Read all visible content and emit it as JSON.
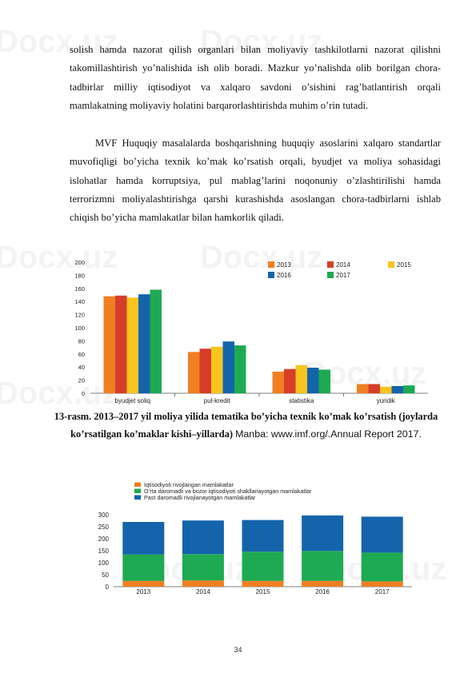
{
  "paragraphs": [
    "solish hamda nazorat qilish organlari bilan moliyaviy  tashkilotlarni nazorat qilishni takomillashtirish yo’nalishida ish olib boradi. Mazkur yo’nalishda olib borilgan chora-tadbirlar milliy iqtisodiyot va xalqaro savdoni o’sishini rag’batlantirish orqali  mamlakatning moliyaviy holatini barqarorlashtirishda muhim o’rin tutadi.",
    "MVF Huquqiy masalalarda boshqarishning huquqiy asoslarini xalqaro standartlar muvofiqligi bo’yicha texnik ko’mak ko’rsatish orqali, byudjet va moliya sohasidagi islohatlar hamda korruptsiya, pul mablag’larini noqonuniy o’zlashtirilishi hamda terrorizmni moliyalashtirishga qarshi kurashishda asoslangan chora-tadbirlarni ishlab chiqish bo’yicha mamlakatlar bilan  hamkorlik qiladi."
  ],
  "caption": {
    "bold": "13-rasm. 2013–2017 yil moliya yilida tematika bo’yicha texnik ko’mak ko’rsatish (joylarda ko’rsatilgan ko’maklar kishi–yillarda)",
    "source": "Manba: www.imf.org/.Annual Report 2017."
  },
  "watermark": "Docx.uz",
  "page_number": "34",
  "chart_data": [
    {
      "type": "bar",
      "categories": [
        "byudjet soliq",
        "pul-kredit",
        "statistika",
        "yuridik"
      ],
      "series": [
        {
          "name": "2013",
          "color": "#F07F22",
          "values": [
            148,
            63,
            33,
            14
          ]
        },
        {
          "name": "2014",
          "color": "#D63E2A",
          "values": [
            149,
            68,
            37,
            14
          ]
        },
        {
          "name": "2015",
          "color": "#F7C51E",
          "values": [
            146,
            71,
            43,
            10
          ]
        },
        {
          "name": "2016",
          "color": "#1464AC",
          "values": [
            151,
            79,
            39,
            11
          ]
        },
        {
          "name": "2017",
          "color": "#1EAA52",
          "values": [
            158,
            73,
            36,
            12
          ]
        }
      ],
      "yticks": [
        "0",
        "20",
        "40",
        "60",
        "80",
        "100",
        "120",
        "140",
        "160",
        "180",
        "200"
      ],
      "ylim": [
        0,
        200
      ],
      "legend": "top-right",
      "grid": false
    },
    {
      "type": "bar",
      "stacked": true,
      "categories": [
        "2013",
        "2014",
        "2015",
        "2016",
        "2017"
      ],
      "series": [
        {
          "name": "Iqtisodiyoti rivojlangan mamlakatlar",
          "color": "#F07F22",
          "values": [
            24,
            26,
            24,
            24,
            22
          ]
        },
        {
          "name": "O’rta daromadli va bozor iqtisodiyoti shakllanayotgan mamlakatlar",
          "color": "#1EAA52",
          "values": [
            110,
            110,
            122,
            125,
            120
          ]
        },
        {
          "name": "Past daromadli rivojlanayotgan mamlakatlar",
          "color": "#1464AC",
          "values": [
            136,
            140,
            132,
            148,
            150
          ]
        }
      ],
      "yticks": [
        "0",
        "50",
        "100",
        "150",
        "200",
        "250",
        "300"
      ],
      "ylim": [
        0,
        300
      ],
      "legend": "top",
      "grid": false
    }
  ]
}
